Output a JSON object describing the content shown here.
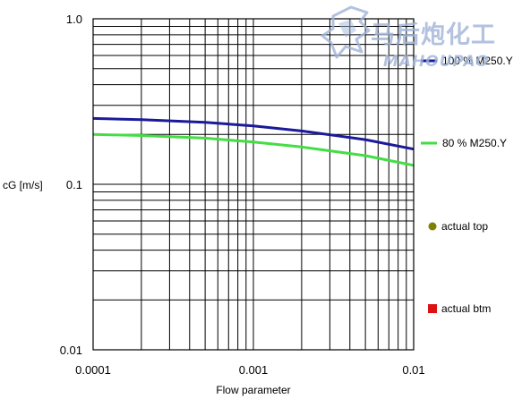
{
  "chart_data": {
    "type": "line",
    "title": "",
    "xlabel": "Flow parameter",
    "ylabel": "cG [m/s]",
    "xscale": "log",
    "yscale": "log",
    "xlim": [
      0.0001,
      0.01
    ],
    "ylim": [
      0.01,
      1.0
    ],
    "grid": true,
    "legend_position": "right",
    "x_tick_labels": [
      "0.0001",
      "0.001",
      "0.01"
    ],
    "y_tick_labels": [
      "0.01",
      "0.1",
      "1.0"
    ],
    "series": [
      {
        "name": "100 % M250.Y",
        "color": "#1a1a9a",
        "x": [
          0.0001,
          0.0002,
          0.0005,
          0.001,
          0.002,
          0.005,
          0.01
        ],
        "y": [
          0.25,
          0.246,
          0.237,
          0.225,
          0.21,
          0.186,
          0.163
        ]
      },
      {
        "name": "80 % M250.Y",
        "color": "#44dd44",
        "x": [
          0.0001,
          0.0002,
          0.0005,
          0.001,
          0.002,
          0.005,
          0.01
        ],
        "y": [
          0.2,
          0.197,
          0.19,
          0.18,
          0.168,
          0.149,
          0.13
        ]
      }
    ],
    "markers": [
      {
        "name": "actual top",
        "color": "#808000",
        "shape": "circle"
      },
      {
        "name": "actual btm",
        "color": "#dd1111",
        "shape": "square"
      }
    ]
  },
  "watermark": {
    "text": "马后炮化工",
    "subtext": "MAHOUPAO",
    "color": "#9fb4d8"
  }
}
